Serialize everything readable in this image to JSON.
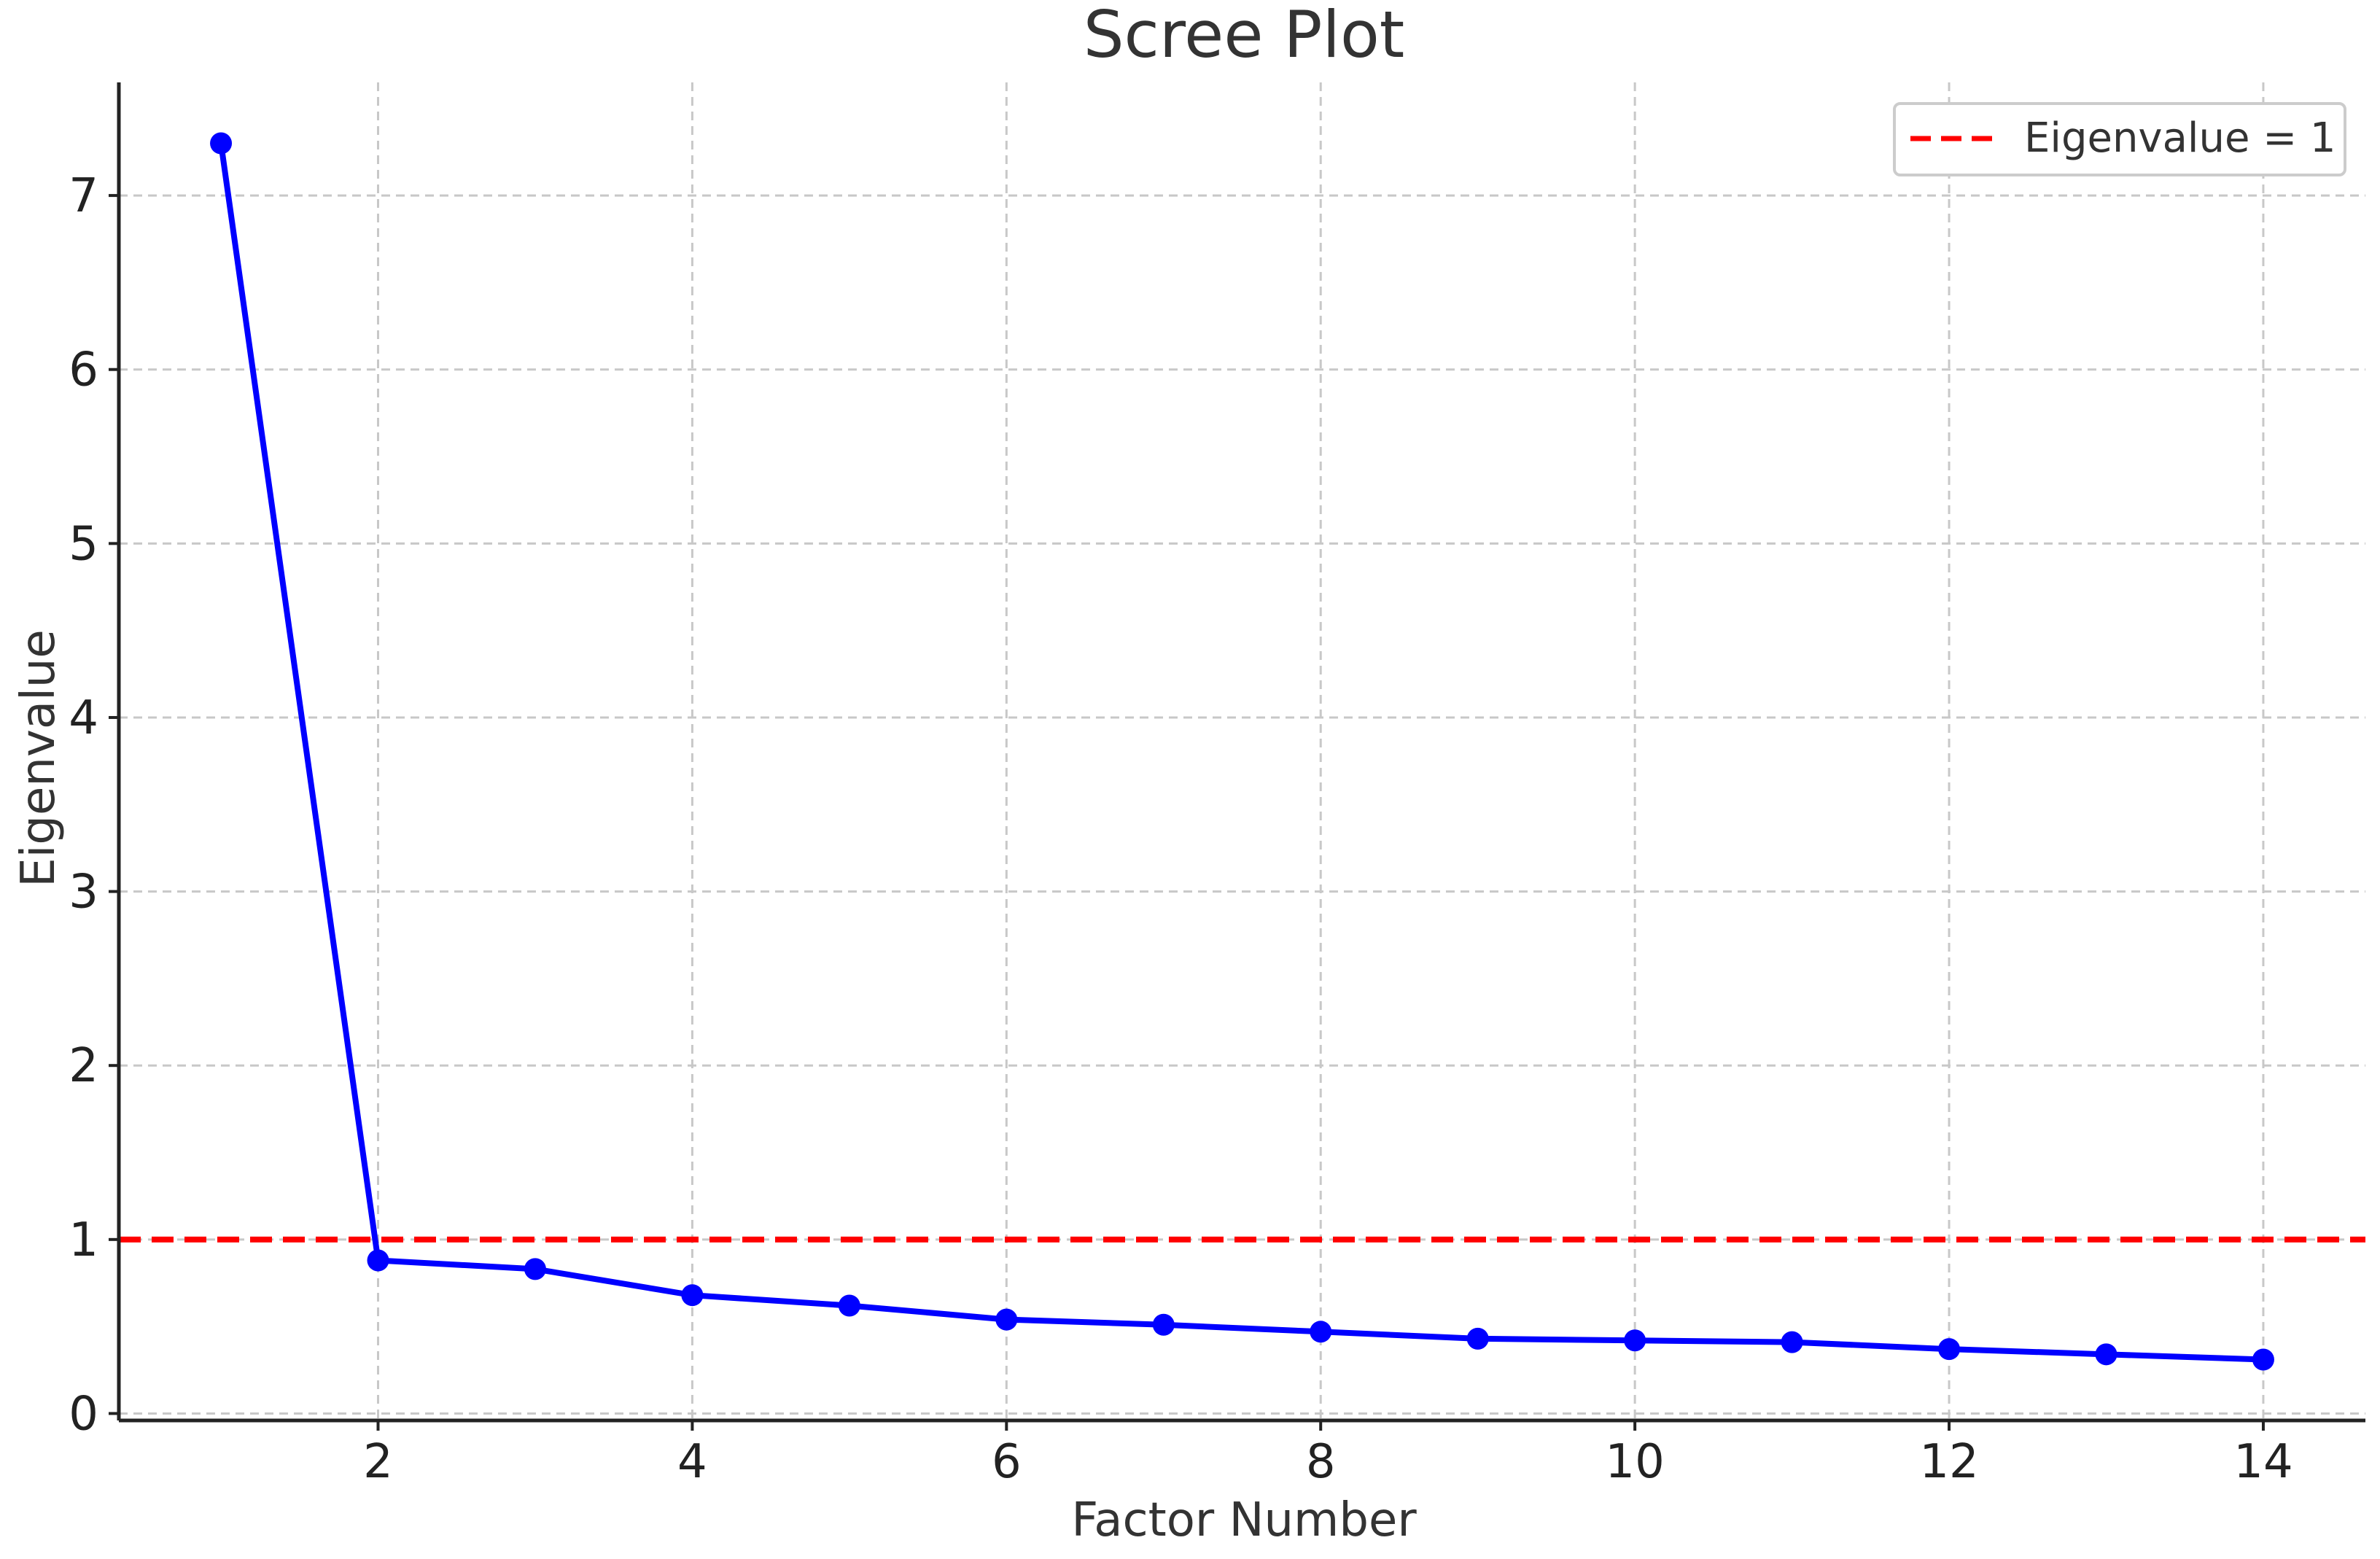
{
  "chart_data": {
    "type": "line",
    "title": "Scree Plot",
    "xlabel": "Factor Number",
    "ylabel": "Eigenvalue",
    "x": [
      1,
      2,
      3,
      4,
      5,
      6,
      7,
      8,
      9,
      10,
      11,
      12,
      13,
      14
    ],
    "series": [
      {
        "values": [
          7.3,
          0.88,
          0.83,
          0.68,
          0.62,
          0.54,
          0.51,
          0.47,
          0.43,
          0.42,
          0.41,
          0.37,
          0.34,
          0.31
        ],
        "color": "#0000ff",
        "marker": "circle"
      }
    ],
    "reference_lines": [
      {
        "name": "Eigenvalue = 1",
        "y": 1,
        "color": "#ff0000",
        "style": "dashed"
      }
    ],
    "xlim": [
      0.35,
      14.65
    ],
    "ylim": [
      -0.04,
      7.65
    ],
    "xticks": [
      2,
      4,
      6,
      8,
      10,
      12,
      14
    ],
    "yticks": [
      0,
      1,
      2,
      3,
      4,
      5,
      6,
      7
    ],
    "grid": true,
    "legend": {
      "placement": "top-right",
      "entries": [
        "Eigenvalue = 1"
      ]
    }
  }
}
